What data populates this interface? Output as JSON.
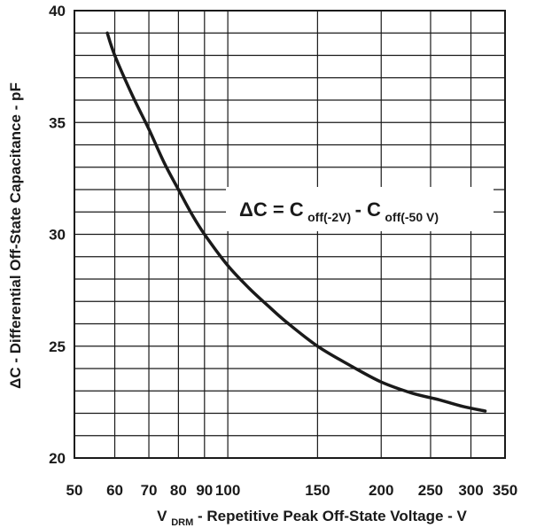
{
  "chart_data": {
    "type": "line",
    "x_scale": "log",
    "xlim": [
      50,
      350
    ],
    "ylim": [
      20,
      40
    ],
    "grid": true,
    "x_ticks": [
      50,
      60,
      70,
      80,
      90,
      100,
      150,
      200,
      250,
      300,
      350
    ],
    "x_tick_labels": [
      "50",
      "60",
      "70",
      "80",
      "90",
      "100",
      "150",
      "200",
      "250",
      "300",
      "350"
    ],
    "y_ticks": [
      20,
      25,
      30,
      35,
      40
    ],
    "y_tick_labels": [
      "20",
      "25",
      "30",
      "35",
      "40"
    ],
    "y_minor_step": 1,
    "xlabel": {
      "main": "V",
      "sub": "DRM",
      "rest": " - Repetitive Peak Off-State Voltage - V"
    },
    "ylabel": "ΔC - Differential Off-State Capacitance - pF",
    "annotation": {
      "lead": "ΔC = C",
      "sub1": "off(-2V)",
      "mid": " - C",
      "sub2": "off(-50 V)"
    },
    "series": [
      {
        "x": [
          58,
          60,
          65,
          70,
          75,
          80,
          85,
          90,
          100,
          110,
          120,
          130,
          150,
          175,
          200,
          230,
          260,
          290,
          320
        ],
        "y": [
          39.0,
          38.0,
          36.2,
          34.7,
          33.2,
          32.0,
          30.9,
          30.0,
          28.6,
          27.6,
          26.8,
          26.1,
          25.0,
          24.1,
          23.4,
          22.9,
          22.6,
          22.3,
          22.1
        ]
      }
    ],
    "colors": {
      "line": "#1a1a1a",
      "grid": "#1a1a1a",
      "background": "#ffffff"
    }
  }
}
